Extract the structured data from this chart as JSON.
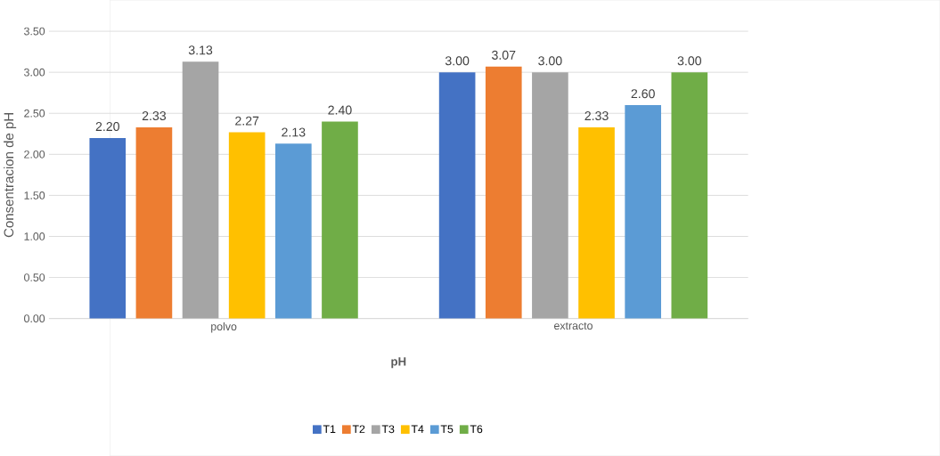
{
  "chart_data": {
    "type": "bar",
    "xlabel": "pH",
    "ylabel": "Consentracion de pH",
    "categories": [
      "polvo",
      "extracto"
    ],
    "series": [
      {
        "name": "T1",
        "color": "#4472c4",
        "values": [
          2.2,
          3.0
        ],
        "value_labels": [
          "2.20",
          "3.00"
        ]
      },
      {
        "name": "T2",
        "color": "#ed7d31",
        "values": [
          2.33,
          3.07
        ],
        "value_labels": [
          "2.33",
          "3.07"
        ]
      },
      {
        "name": "T3",
        "color": "#a5a5a5",
        "values": [
          3.13,
          3.0
        ],
        "value_labels": [
          "3.13",
          "3.00"
        ]
      },
      {
        "name": "T4",
        "color": "#ffc000",
        "values": [
          2.27,
          2.33
        ],
        "value_labels": [
          "2.27",
          "2.33"
        ]
      },
      {
        "name": "T5",
        "color": "#5b9bd5",
        "values": [
          2.13,
          2.6
        ],
        "value_labels": [
          "2.13",
          "2.60"
        ]
      },
      {
        "name": "T6",
        "color": "#70ad47",
        "values": [
          2.4,
          3.0
        ],
        "value_labels": [
          "2.40",
          "3.00"
        ]
      }
    ],
    "ylim": [
      0,
      3.5
    ],
    "yticks": [
      {
        "value": 0,
        "label": "0.00"
      },
      {
        "value": 0.5,
        "label": "0.50"
      },
      {
        "value": 1,
        "label": "1.00"
      },
      {
        "value": 1.5,
        "label": "1.50"
      },
      {
        "value": 2,
        "label": "2.00"
      },
      {
        "value": 2.5,
        "label": "2.50"
      },
      {
        "value": 3,
        "label": "3.00"
      },
      {
        "value": 3.5,
        "label": "3.50"
      }
    ],
    "grid": "y",
    "legend": "bottom"
  }
}
